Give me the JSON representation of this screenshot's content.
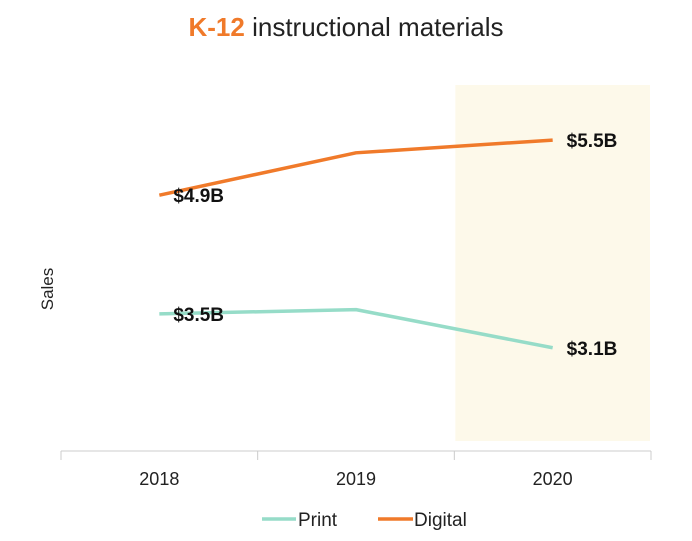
{
  "chart_data": {
    "type": "line",
    "title": "instructional materials",
    "title_emphasis": "K-12",
    "xlabel": "",
    "ylabel": "Sales",
    "categories": [
      "2018",
      "2019",
      "2020"
    ],
    "ylim": [
      2.0,
      6.2
    ],
    "highlight_category": "2020",
    "grid": false,
    "legend": "bottom",
    "series": [
      {
        "name": "Print",
        "color": "#96dcc8",
        "values": [
          3.5,
          3.55,
          3.1
        ],
        "labels": [
          "$3.5B",
          "",
          "$3.1B"
        ]
      },
      {
        "name": "Digital",
        "color": "#f07a2a",
        "values": [
          4.9,
          5.4,
          5.55
        ],
        "labels": [
          "$4.9B",
          "",
          "$5.5B"
        ]
      }
    ],
    "colors": {
      "title_emphasis": "#f07a2a",
      "highlight_band": "#fdf9ea",
      "axis": "#cccccc"
    }
  }
}
